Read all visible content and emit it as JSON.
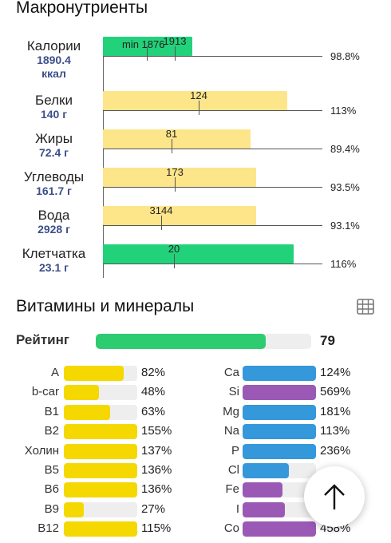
{
  "macro_section": {
    "title": "Макронутриенты"
  },
  "macros": [
    {
      "name": "Калории",
      "value": "1890.4",
      "unit": "ккал",
      "fraction": 0.43,
      "target": "1913",
      "min_label": "min 1876",
      "percent": "98.8%",
      "color": "green"
    },
    {
      "name": "Белки",
      "value": "140 г",
      "unit": "",
      "fraction": 0.89,
      "target": "124",
      "min_label": "",
      "percent": "113%",
      "color": "yellow"
    },
    {
      "name": "Жиры",
      "value": "72.4 г",
      "unit": "",
      "fraction": 0.71,
      "target": "81",
      "min_label": "",
      "percent": "89.4%",
      "color": "yellow"
    },
    {
      "name": "Углеводы",
      "value": "161.7 г",
      "unit": "",
      "fraction": 0.74,
      "target": "173",
      "min_label": "",
      "percent": "93.5%",
      "color": "yellow"
    },
    {
      "name": "Вода",
      "value": "2928 г",
      "unit": "",
      "fraction": 0.74,
      "target": "3144",
      "min_label": "",
      "percent": "93.1%",
      "color": "yellow"
    },
    {
      "name": "Клетчатка",
      "value": "23.1 г",
      "unit": "",
      "fraction": 0.92,
      "target": "20",
      "min_label": "",
      "percent": "116%",
      "color": "green"
    }
  ],
  "vitamins_section": {
    "title": "Витамины и минералы",
    "table_icon": "table-grid-icon"
  },
  "rating": {
    "label": "Рейтинг",
    "value": "79",
    "fraction": 0.79,
    "color": "#2ecc71"
  },
  "vitamins": [
    {
      "name": "A",
      "percent": "82%",
      "fraction": 0.82
    },
    {
      "name": "b-car",
      "percent": "48%",
      "fraction": 0.48
    },
    {
      "name": "B1",
      "percent": "63%",
      "fraction": 0.63
    },
    {
      "name": "B2",
      "percent": "155%",
      "fraction": 1.0
    },
    {
      "name": "Холин",
      "percent": "137%",
      "fraction": 1.0
    },
    {
      "name": "B5",
      "percent": "136%",
      "fraction": 1.0
    },
    {
      "name": "B6",
      "percent": "136%",
      "fraction": 1.0
    },
    {
      "name": "B9",
      "percent": "27%",
      "fraction": 0.27
    },
    {
      "name": "B12",
      "percent": "115%",
      "fraction": 1.0
    }
  ],
  "minerals": [
    {
      "name": "Ca",
      "percent": "124%",
      "fraction": 1.0,
      "color": "#3498db"
    },
    {
      "name": "Si",
      "percent": "569%",
      "fraction": 1.0,
      "color": "#9b59b6"
    },
    {
      "name": "Mg",
      "percent": "181%",
      "fraction": 1.0,
      "color": "#3498db"
    },
    {
      "name": "Na",
      "percent": "113%",
      "fraction": 1.0,
      "color": "#3498db"
    },
    {
      "name": "P",
      "percent": "236%",
      "fraction": 1.0,
      "color": "#3498db"
    },
    {
      "name": "Cl",
      "percent": "",
      "fraction": 0.63,
      "color": "#3498db"
    },
    {
      "name": "Fe",
      "percent": "",
      "fraction": 0.54,
      "color": "#9b59b6"
    },
    {
      "name": "I",
      "percent": "",
      "fraction": 0.58,
      "color": "#9b59b6"
    },
    {
      "name": "Co",
      "percent": "458%",
      "fraction": 1.0,
      "color": "#9b59b6"
    }
  ],
  "colors": {
    "vitamin": "#f5d800",
    "macro_yellow": "#fde58a",
    "macro_green": "#22d27a"
  },
  "fab": {
    "icon": "arrow-up-icon"
  }
}
